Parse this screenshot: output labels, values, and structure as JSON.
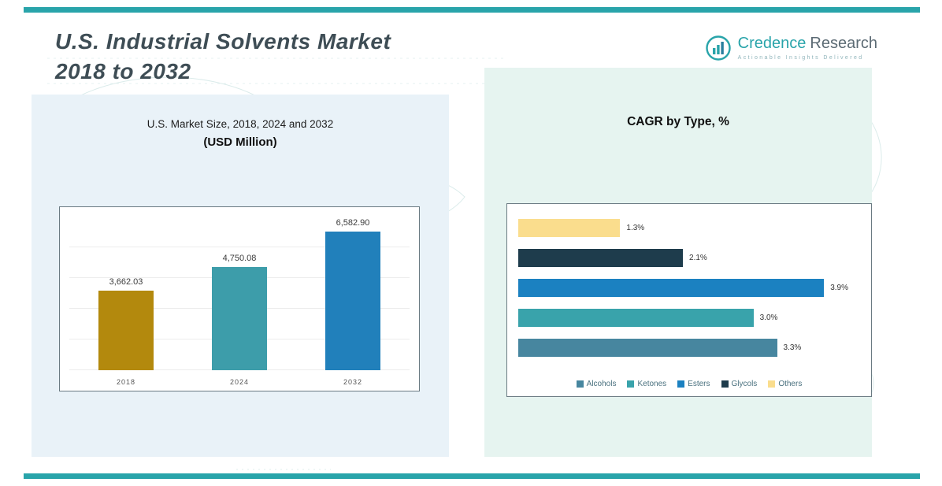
{
  "page": {
    "title_line1": "U.S. Industrial Solvents Market",
    "title_line2": "2018 to 2032"
  },
  "logo": {
    "brand_primary": "Credence",
    "brand_secondary": "Research",
    "tagline": "Actionable Insights Delivered",
    "icon": "bar-chart-in-circle-icon"
  },
  "colors": {
    "accent_teal": "#29a4aa",
    "panel_left_bg": "#e9f2f8",
    "panel_right_bg": "#e6f4f0",
    "title_color": "#3e4d55",
    "chart_box_border": "#6a7a82"
  },
  "chart_data": [
    {
      "type": "bar",
      "orientation": "vertical",
      "title": "U.S. Market Size, 2018, 2024 and 2032",
      "subtitle": "(USD Million)",
      "categories": [
        "2018",
        "2024",
        "2032"
      ],
      "values": [
        3662.03,
        4750.08,
        6582.9
      ],
      "value_labels": [
        "3,662.03",
        "4,750.08",
        "6,582.90"
      ],
      "bar_colors": [
        "#b3890d",
        "#3d9daa",
        "#2180bb"
      ],
      "xlabel": "",
      "ylabel": "",
      "ylim": [
        0,
        7000
      ],
      "grid": true,
      "legend_position": "none"
    },
    {
      "type": "bar",
      "orientation": "horizontal",
      "title": "CAGR by Type, %",
      "categories": [
        "Others",
        "Glycols",
        "Esters",
        "Ketones",
        "Alcohols"
      ],
      "values": [
        1.3,
        2.1,
        3.9,
        3.0,
        3.3
      ],
      "value_labels": [
        "1.3%",
        "2.1%",
        "3.9%",
        "3.0%",
        "3.3%"
      ],
      "bar_colors": [
        "#fadd8d",
        "#1e3c4c",
        "#1b81c1",
        "#39a3ab",
        "#47869f"
      ],
      "xlabel": "",
      "ylabel": "",
      "xlim": [
        0,
        4.4
      ],
      "grid": false,
      "legend_position": "bottom",
      "legend": [
        {
          "label": "Alcohols",
          "color": "#47869f"
        },
        {
          "label": "Ketones",
          "color": "#39a3ab"
        },
        {
          "label": "Esters",
          "color": "#1b81c1"
        },
        {
          "label": "Glycols",
          "color": "#1e3c4c"
        },
        {
          "label": "Others",
          "color": "#fadd8d"
        }
      ]
    }
  ]
}
